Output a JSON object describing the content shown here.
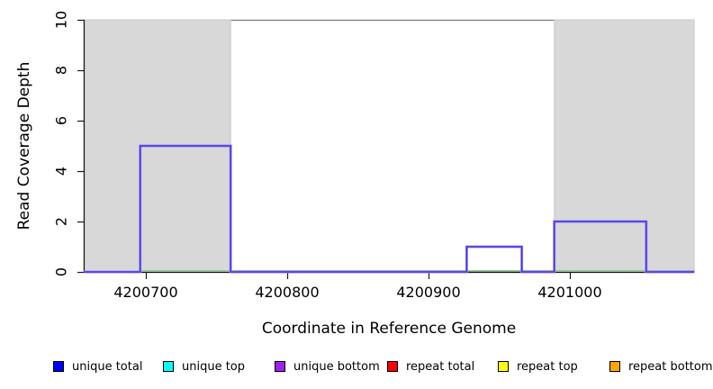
{
  "chart_data": {
    "type": "step",
    "title": "",
    "xlabel": "Coordinate in Reference Genome",
    "ylabel": "Read Coverage Depth",
    "x_ticks": [
      4200700,
      4200800,
      4200900,
      4201000
    ],
    "x_tick_labels": [
      "4200700",
      "4200800",
      "4200900",
      "4201000"
    ],
    "y_ticks": [
      0,
      2,
      4,
      6,
      8,
      10
    ],
    "y_tick_labels": [
      "0",
      "2",
      "4",
      "6",
      "8",
      "10"
    ],
    "xlim": [
      4200656,
      4201088
    ],
    "ylim": [
      0,
      10
    ],
    "grid": false,
    "repeat_regions": [
      {
        "start": 4200656,
        "end": 4200760
      },
      {
        "start": 4200989,
        "end": 4201088
      }
    ],
    "repeat_region_fill": "#d8d8d8",
    "repeat_region_border": "#c9c9c9",
    "coverage_segments": [
      {
        "start": 4200656,
        "end": 4200696,
        "depth": 0
      },
      {
        "start": 4200696,
        "end": 4200760,
        "depth": 5
      },
      {
        "start": 4200760,
        "end": 4200927,
        "depth": 0
      },
      {
        "start": 4200927,
        "end": 4200966,
        "depth": 1
      },
      {
        "start": 4200966,
        "end": 4200989,
        "depth": 0
      },
      {
        "start": 4200989,
        "end": 4201054,
        "depth": 2
      },
      {
        "start": 4201054,
        "end": 4201088,
        "depth": 0
      }
    ],
    "coverage_line_color_outer": "#9c8cf4",
    "coverage_line_color_inner": "#4533e2",
    "zero_line": {
      "start": 4200696,
      "end": 4201088,
      "color": "#8fc98f"
    },
    "box_color": "#7e7e7e",
    "axis_color": "#1a1a1a"
  },
  "legend": {
    "position": "bottom",
    "items": [
      {
        "label": "unique total",
        "color": "#0000ff"
      },
      {
        "label": "unique top",
        "color": "#00ffff"
      },
      {
        "label": "unique bottom",
        "color": "#a020f0"
      },
      {
        "label": "repeat total",
        "color": "#ff0000"
      },
      {
        "label": "repeat top",
        "color": "#ffff00"
      },
      {
        "label": "repeat bottom",
        "color": "#ffa500"
      }
    ]
  }
}
